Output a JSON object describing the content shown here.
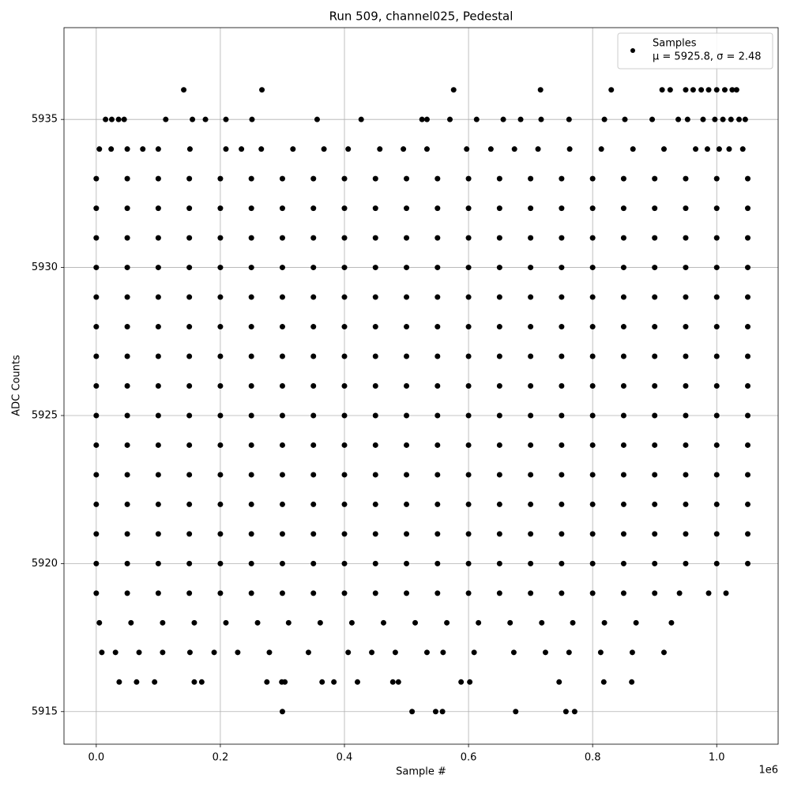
{
  "chart_data": {
    "type": "scatter",
    "title": "Run 509, channel025, Pedestal",
    "x_label": "Sample #",
    "y_label": "ADC Counts",
    "x_offset_label": "1e6",
    "legend_position": "upper right",
    "grid": true,
    "xlim": [
      -52000,
      1099000
    ],
    "ylim": [
      5913.9,
      5938.1
    ],
    "xticks": [
      {
        "value": 0,
        "label": "0.0"
      },
      {
        "value": 200000,
        "label": "0.2"
      },
      {
        "value": 400000,
        "label": "0.4"
      },
      {
        "value": 600000,
        "label": "0.6"
      },
      {
        "value": 800000,
        "label": "0.8"
      },
      {
        "value": 1000000,
        "label": "1.0"
      }
    ],
    "yticks": [
      5915,
      5920,
      5925,
      5930,
      5935
    ],
    "series": [
      {
        "name": "Samples",
        "annotation": "μ = 5925.8, σ = 2.48",
        "color": "#000000",
        "x": [
          0,
          50000,
          100000,
          150000,
          200000,
          250000,
          300000,
          350000,
          400000,
          450000,
          500000,
          550000,
          600000,
          650000,
          700000,
          750000,
          800000,
          850000,
          900000,
          950000,
          1000000,
          1050000,
          0,
          50000,
          100000,
          150000,
          200000,
          250000,
          300000,
          350000,
          400000,
          450000,
          500000,
          550000,
          600000,
          650000,
          700000,
          750000,
          800000,
          850000,
          900000,
          950000,
          1000000,
          1050000,
          0,
          50000,
          100000,
          150000,
          200000,
          250000,
          300000,
          350000,
          400000,
          450000,
          500000,
          550000,
          600000,
          650000,
          700000,
          750000,
          800000,
          850000,
          900000,
          950000,
          1000000,
          1050000,
          0,
          50000,
          100000,
          150000,
          200000,
          250000,
          300000,
          350000,
          400000,
          450000,
          500000,
          550000,
          600000,
          650000,
          700000,
          750000,
          800000,
          850000,
          900000,
          950000,
          1000000,
          1050000,
          0,
          50000,
          100000,
          150000,
          200000,
          250000,
          300000,
          350000,
          400000,
          450000,
          500000,
          550000,
          600000,
          650000,
          700000,
          750000,
          800000,
          850000,
          900000,
          950000,
          1000000,
          1050000,
          0,
          50000,
          100000,
          150000,
          200000,
          250000,
          300000,
          350000,
          400000,
          450000,
          500000,
          550000,
          600000,
          650000,
          700000,
          750000,
          800000,
          850000,
          900000,
          950000,
          1000000,
          1050000,
          0,
          50000,
          100000,
          150000,
          200000,
          250000,
          300000,
          350000,
          400000,
          450000,
          500000,
          550000,
          600000,
          650000,
          700000,
          750000,
          800000,
          850000,
          900000,
          950000,
          1000000,
          1050000,
          0,
          50000,
          100000,
          150000,
          200000,
          250000,
          300000,
          350000,
          400000,
          450000,
          500000,
          550000,
          600000,
          650000,
          700000,
          750000,
          800000,
          850000,
          900000,
          950000,
          1000000,
          1050000,
          0,
          50000,
          100000,
          150000,
          200000,
          250000,
          300000,
          350000,
          400000,
          450000,
          500000,
          550000,
          600000,
          650000,
          700000,
          750000,
          800000,
          850000,
          900000,
          950000,
          1000000,
          1050000,
          0,
          50000,
          100000,
          150000,
          200000,
          250000,
          300000,
          350000,
          400000,
          450000,
          500000,
          550000,
          600000,
          650000,
          700000,
          750000,
          800000,
          850000,
          900000,
          950000,
          1000000,
          1050000,
          0,
          50000,
          100000,
          150000,
          200000,
          250000,
          300000,
          350000,
          400000,
          450000,
          500000,
          550000,
          600000,
          650000,
          700000,
          750000,
          800000,
          850000,
          900000,
          950000,
          1000000,
          1050000,
          0,
          50000,
          100000,
          150000,
          200000,
          250000,
          300000,
          350000,
          400000,
          450000,
          500000,
          550000,
          600000,
          650000,
          700000,
          750000,
          800000,
          850000,
          900000,
          950000,
          1000000,
          1050000,
          0,
          50000,
          100000,
          150000,
          200000,
          250000,
          300000,
          350000,
          400000,
          450000,
          500000,
          550000,
          600000,
          650000,
          700000,
          750000,
          800000,
          850000,
          900000,
          950000,
          1000000,
          1050000,
          0,
          50000,
          100000,
          150000,
          200000,
          250000,
          300000,
          350000,
          400000,
          450000,
          500000,
          550000,
          600000,
          650000,
          700000,
          750000,
          800000,
          850000,
          900000,
          950000,
          1000000,
          1050000,
          300000,
          509000,
          547000,
          558000,
          676000,
          757000,
          771000,
          37000,
          65000,
          94000,
          158000,
          170000,
          275000,
          299000,
          304000,
          364000,
          383000,
          421000,
          478000,
          487000,
          588000,
          602000,
          746000,
          818000,
          863000,
          9000,
          31000,
          69000,
          107000,
          151000,
          190000,
          228000,
          279000,
          342000,
          406000,
          444000,
          482000,
          533000,
          559000,
          609000,
          673000,
          724000,
          762000,
          813000,
          864000,
          915000,
          5000,
          56000,
          107000,
          158000,
          209000,
          260000,
          310000,
          361000,
          412000,
          463000,
          514000,
          565000,
          616000,
          667000,
          718000,
          768000,
          819000,
          870000,
          927000,
          0,
          50000,
          100000,
          150000,
          200000,
          250000,
          300000,
          350000,
          400000,
          450000,
          500000,
          550000,
          600000,
          650000,
          700000,
          750000,
          800000,
          850000,
          900000,
          940000,
          987000,
          1015000,
          5000,
          24000,
          50000,
          75000,
          100000,
          151000,
          209000,
          234000,
          266000,
          317000,
          367000,
          406000,
          457000,
          495000,
          533000,
          597000,
          636000,
          674000,
          712000,
          763000,
          814000,
          865000,
          915000,
          966000,
          985000,
          1004000,
          1020000,
          1042000,
          15000,
          25000,
          36000,
          45000,
          112000,
          155000,
          176000,
          209000,
          251000,
          356000,
          427000,
          525000,
          533000,
          570000,
          613000,
          656000,
          684000,
          717000,
          762000,
          819000,
          852000,
          896000,
          938000,
          953000,
          978000,
          997000,
          1010000,
          1023000,
          1036000,
          1046000,
          141000,
          267000,
          576000,
          716000,
          830000,
          912000,
          925000,
          950000,
          962000,
          975000,
          987000,
          1000000,
          1013000,
          1025000,
          1032000
        ],
        "values": [
          5920,
          5920,
          5920,
          5920,
          5920,
          5920,
          5920,
          5920,
          5920,
          5920,
          5920,
          5920,
          5920,
          5920,
          5920,
          5920,
          5920,
          5920,
          5920,
          5920,
          5920,
          5920,
          5921,
          5921,
          5921,
          5921,
          5921,
          5921,
          5921,
          5921,
          5921,
          5921,
          5921,
          5921,
          5921,
          5921,
          5921,
          5921,
          5921,
          5921,
          5921,
          5921,
          5921,
          5921,
          5922,
          5922,
          5922,
          5922,
          5922,
          5922,
          5922,
          5922,
          5922,
          5922,
          5922,
          5922,
          5922,
          5922,
          5922,
          5922,
          5922,
          5922,
          5922,
          5922,
          5922,
          5922,
          5923,
          5923,
          5923,
          5923,
          5923,
          5923,
          5923,
          5923,
          5923,
          5923,
          5923,
          5923,
          5923,
          5923,
          5923,
          5923,
          5923,
          5923,
          5923,
          5923,
          5923,
          5923,
          5924,
          5924,
          5924,
          5924,
          5924,
          5924,
          5924,
          5924,
          5924,
          5924,
          5924,
          5924,
          5924,
          5924,
          5924,
          5924,
          5924,
          5924,
          5924,
          5924,
          5924,
          5924,
          5925,
          5925,
          5925,
          5925,
          5925,
          5925,
          5925,
          5925,
          5925,
          5925,
          5925,
          5925,
          5925,
          5925,
          5925,
          5925,
          5925,
          5925,
          5925,
          5925,
          5925,
          5925,
          5926,
          5926,
          5926,
          5926,
          5926,
          5926,
          5926,
          5926,
          5926,
          5926,
          5926,
          5926,
          5926,
          5926,
          5926,
          5926,
          5926,
          5926,
          5926,
          5926,
          5926,
          5926,
          5927,
          5927,
          5927,
          5927,
          5927,
          5927,
          5927,
          5927,
          5927,
          5927,
          5927,
          5927,
          5927,
          5927,
          5927,
          5927,
          5927,
          5927,
          5927,
          5927,
          5927,
          5927,
          5928,
          5928,
          5928,
          5928,
          5928,
          5928,
          5928,
          5928,
          5928,
          5928,
          5928,
          5928,
          5928,
          5928,
          5928,
          5928,
          5928,
          5928,
          5928,
          5928,
          5928,
          5928,
          5929,
          5929,
          5929,
          5929,
          5929,
          5929,
          5929,
          5929,
          5929,
          5929,
          5929,
          5929,
          5929,
          5929,
          5929,
          5929,
          5929,
          5929,
          5929,
          5929,
          5929,
          5929,
          5930,
          5930,
          5930,
          5930,
          5930,
          5930,
          5930,
          5930,
          5930,
          5930,
          5930,
          5930,
          5930,
          5930,
          5930,
          5930,
          5930,
          5930,
          5930,
          5930,
          5930,
          5930,
          5931,
          5931,
          5931,
          5931,
          5931,
          5931,
          5931,
          5931,
          5931,
          5931,
          5931,
          5931,
          5931,
          5931,
          5931,
          5931,
          5931,
          5931,
          5931,
          5931,
          5931,
          5931,
          5932,
          5932,
          5932,
          5932,
          5932,
          5932,
          5932,
          5932,
          5932,
          5932,
          5932,
          5932,
          5932,
          5932,
          5932,
          5932,
          5932,
          5932,
          5932,
          5932,
          5932,
          5932,
          5933,
          5933,
          5933,
          5933,
          5933,
          5933,
          5933,
          5933,
          5933,
          5933,
          5933,
          5933,
          5933,
          5933,
          5933,
          5933,
          5933,
          5933,
          5933,
          5933,
          5933,
          5933,
          5915,
          5915,
          5915,
          5915,
          5915,
          5915,
          5915,
          5916,
          5916,
          5916,
          5916,
          5916,
          5916,
          5916,
          5916,
          5916,
          5916,
          5916,
          5916,
          5916,
          5916,
          5916,
          5916,
          5916,
          5916,
          5917,
          5917,
          5917,
          5917,
          5917,
          5917,
          5917,
          5917,
          5917,
          5917,
          5917,
          5917,
          5917,
          5917,
          5917,
          5917,
          5917,
          5917,
          5917,
          5917,
          5917,
          5918,
          5918,
          5918,
          5918,
          5918,
          5918,
          5918,
          5918,
          5918,
          5918,
          5918,
          5918,
          5918,
          5918,
          5918,
          5918,
          5918,
          5918,
          5918,
          5919,
          5919,
          5919,
          5919,
          5919,
          5919,
          5919,
          5919,
          5919,
          5919,
          5919,
          5919,
          5919,
          5919,
          5919,
          5919,
          5919,
          5919,
          5919,
          5919,
          5919,
          5919,
          5934,
          5934,
          5934,
          5934,
          5934,
          5934,
          5934,
          5934,
          5934,
          5934,
          5934,
          5934,
          5934,
          5934,
          5934,
          5934,
          5934,
          5934,
          5934,
          5934,
          5934,
          5934,
          5934,
          5934,
          5934,
          5934,
          5934,
          5934,
          5935,
          5935,
          5935,
          5935,
          5935,
          5935,
          5935,
          5935,
          5935,
          5935,
          5935,
          5935,
          5935,
          5935,
          5935,
          5935,
          5935,
          5935,
          5935,
          5935,
          5935,
          5935,
          5935,
          5935,
          5935,
          5935,
          5935,
          5935,
          5935,
          5935,
          5936,
          5936,
          5936,
          5936,
          5936,
          5936,
          5936,
          5936,
          5936,
          5936,
          5936,
          5936,
          5936,
          5936,
          5936
        ]
      }
    ]
  }
}
